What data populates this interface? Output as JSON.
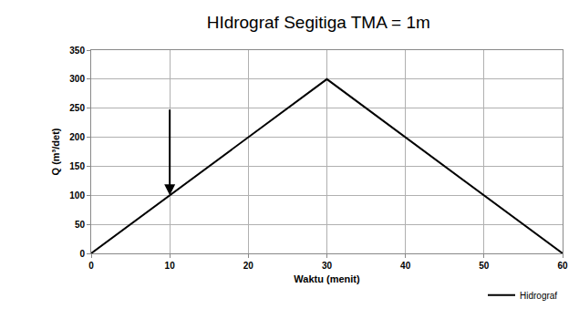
{
  "chart_data": {
    "type": "line",
    "title": "HIdrograf Segitiga TMA = 1m",
    "x_label": "Waktu (menit)",
    "y_label": "Q (m³/det)",
    "x": [
      0,
      30,
      60
    ],
    "series": [
      {
        "name": "Hidrograf",
        "color": "#000000",
        "values": [
          0,
          300,
          0
        ]
      }
    ],
    "xlim": [
      0,
      60
    ],
    "xticks": [
      0,
      10,
      20,
      30,
      40,
      50,
      60
    ],
    "ylim": [
      0,
      350
    ],
    "yticks": [
      0,
      50,
      100,
      150,
      200,
      250,
      300,
      350
    ],
    "grid": true,
    "legend": "lower right",
    "annotations": [
      {
        "x": 10,
        "y": 100,
        "from_y": 250
      }
    ]
  }
}
